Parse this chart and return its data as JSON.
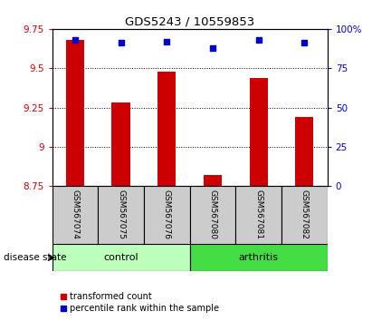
{
  "title": "GDS5243 / 10559853",
  "samples": [
    "GSM567074",
    "GSM567075",
    "GSM567076",
    "GSM567080",
    "GSM567081",
    "GSM567082"
  ],
  "bar_values": [
    9.68,
    9.28,
    9.48,
    8.82,
    9.44,
    9.19
  ],
  "percentile_values": [
    93,
    91,
    92,
    88,
    93,
    91
  ],
  "ylim_left": [
    8.75,
    9.75
  ],
  "ylim_right": [
    0,
    100
  ],
  "yticks_left": [
    8.75,
    9.0,
    9.25,
    9.5,
    9.75
  ],
  "ytick_labels_left": [
    "8.75",
    "9",
    "9.25",
    "9.5",
    "9.75"
  ],
  "yticks_right": [
    0,
    25,
    50,
    75,
    100
  ],
  "ytick_labels_right": [
    "0",
    "25",
    "50",
    "75",
    "100%"
  ],
  "grid_values": [
    9.0,
    9.25,
    9.5
  ],
  "bar_color": "#cc0000",
  "dot_color": "#0000cc",
  "bar_bottom": 8.75,
  "control_color": "#bbffbb",
  "arthritis_color": "#44dd44",
  "label_color_left": "#cc0000",
  "label_color_right": "#0000cc",
  "disease_label": "disease state",
  "legend_bar_label": "transformed count",
  "legend_dot_label": "percentile rank within the sample",
  "sample_bg_color": "#cccccc",
  "n_control": 3,
  "n_arthritis": 3,
  "bar_width": 0.4
}
